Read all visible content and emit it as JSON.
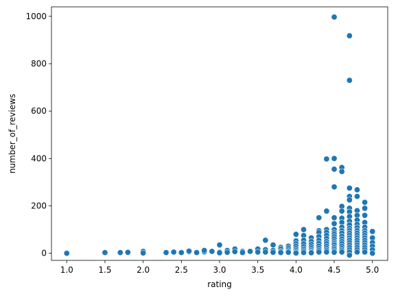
{
  "chart_data": {
    "type": "scatter",
    "title": "",
    "xlabel": "rating",
    "ylabel": "number_of_reviews",
    "xlim": [
      0.8,
      5.2
    ],
    "ylim": [
      -30,
      1040
    ],
    "xticks": [
      1.0,
      1.5,
      2.0,
      2.5,
      3.0,
      3.5,
      4.0,
      4.5,
      5.0
    ],
    "xtick_labels": [
      "1.0",
      "1.5",
      "2.0",
      "2.5",
      "3.0",
      "3.5",
      "4.0",
      "4.5",
      "5.0"
    ],
    "yticks": [
      0,
      200,
      400,
      600,
      800,
      1000
    ],
    "ytick_labels": [
      "0",
      "200",
      "400",
      "600",
      "800",
      "1000"
    ],
    "grid": false,
    "color": "#1f77b4",
    "series": [
      {
        "points": [
          [
            1.0,
            1
          ],
          [
            1.0,
            0
          ],
          [
            1.5,
            3
          ],
          [
            1.7,
            3
          ],
          [
            1.8,
            5
          ],
          [
            1.8,
            4
          ],
          [
            2.0,
            8
          ],
          [
            2.0,
            1
          ],
          [
            2.3,
            3
          ],
          [
            2.4,
            5
          ],
          [
            2.5,
            3
          ],
          [
            2.6,
            6
          ],
          [
            2.6,
            9
          ],
          [
            2.7,
            3
          ],
          [
            2.8,
            6
          ],
          [
            2.8,
            12
          ],
          [
            2.9,
            8
          ],
          [
            3.0,
            35
          ],
          [
            3.0,
            5
          ],
          [
            3.0,
            2
          ],
          [
            3.1,
            12
          ],
          [
            3.1,
            4
          ],
          [
            3.2,
            18
          ],
          [
            3.2,
            7
          ],
          [
            3.3,
            8
          ],
          [
            3.3,
            3
          ],
          [
            3.4,
            8
          ],
          [
            3.5,
            18
          ],
          [
            3.5,
            5
          ],
          [
            3.6,
            55
          ],
          [
            3.6,
            15
          ],
          [
            3.6,
            5
          ],
          [
            3.7,
            35
          ],
          [
            3.7,
            12
          ],
          [
            3.7,
            4
          ],
          [
            3.8,
            25
          ],
          [
            3.8,
            18
          ],
          [
            3.8,
            8
          ],
          [
            3.8,
            3
          ],
          [
            3.9,
            30
          ],
          [
            3.9,
            22
          ],
          [
            3.9,
            15
          ],
          [
            3.9,
            8
          ],
          [
            3.9,
            4
          ],
          [
            4.0,
            80
          ],
          [
            4.0,
            52
          ],
          [
            4.0,
            40
          ],
          [
            4.0,
            30
          ],
          [
            4.0,
            20
          ],
          [
            4.0,
            12
          ],
          [
            4.0,
            5
          ],
          [
            4.0,
            1
          ],
          [
            4.1,
            100
          ],
          [
            4.1,
            75
          ],
          [
            4.1,
            55
          ],
          [
            4.1,
            40
          ],
          [
            4.1,
            28
          ],
          [
            4.1,
            18
          ],
          [
            4.1,
            10
          ],
          [
            4.1,
            3
          ],
          [
            4.2,
            65
          ],
          [
            4.2,
            50
          ],
          [
            4.2,
            38
          ],
          [
            4.2,
            28
          ],
          [
            4.2,
            20
          ],
          [
            4.2,
            12
          ],
          [
            4.2,
            6
          ],
          [
            4.2,
            2
          ],
          [
            4.3,
            150
          ],
          [
            4.3,
            95
          ],
          [
            4.3,
            88
          ],
          [
            4.3,
            70
          ],
          [
            4.3,
            55
          ],
          [
            4.3,
            42
          ],
          [
            4.3,
            30
          ],
          [
            4.3,
            20
          ],
          [
            4.3,
            12
          ],
          [
            4.3,
            5
          ],
          [
            4.4,
            398
          ],
          [
            4.4,
            178
          ],
          [
            4.4,
            100
          ],
          [
            4.4,
            88
          ],
          [
            4.4,
            75
          ],
          [
            4.4,
            62
          ],
          [
            4.4,
            50
          ],
          [
            4.4,
            40
          ],
          [
            4.4,
            30
          ],
          [
            4.4,
            20
          ],
          [
            4.4,
            12
          ],
          [
            4.4,
            5
          ],
          [
            4.5,
            997
          ],
          [
            4.5,
            400
          ],
          [
            4.5,
            355
          ],
          [
            4.5,
            280
          ],
          [
            4.5,
            150
          ],
          [
            4.5,
            125
          ],
          [
            4.5,
            100
          ],
          [
            4.5,
            88
          ],
          [
            4.5,
            80
          ],
          [
            4.5,
            70
          ],
          [
            4.5,
            60
          ],
          [
            4.5,
            50
          ],
          [
            4.5,
            42
          ],
          [
            4.5,
            35
          ],
          [
            4.5,
            25
          ],
          [
            4.5,
            18
          ],
          [
            4.5,
            10
          ],
          [
            4.5,
            4
          ],
          [
            4.6,
            362
          ],
          [
            4.6,
            345
          ],
          [
            4.6,
            198
          ],
          [
            4.6,
            178
          ],
          [
            4.6,
            148
          ],
          [
            4.6,
            130
          ],
          [
            4.6,
            110
          ],
          [
            4.6,
            95
          ],
          [
            4.6,
            85
          ],
          [
            4.6,
            72
          ],
          [
            4.6,
            60
          ],
          [
            4.6,
            50
          ],
          [
            4.6,
            40
          ],
          [
            4.6,
            30
          ],
          [
            4.6,
            20
          ],
          [
            4.6,
            12
          ],
          [
            4.6,
            5
          ],
          [
            4.7,
            918
          ],
          [
            4.7,
            730
          ],
          [
            4.7,
            275
          ],
          [
            4.7,
            240
          ],
          [
            4.7,
            225
          ],
          [
            4.7,
            190
          ],
          [
            4.7,
            175
          ],
          [
            4.7,
            155
          ],
          [
            4.7,
            135
          ],
          [
            4.7,
            120
          ],
          [
            4.7,
            105
          ],
          [
            4.7,
            95
          ],
          [
            4.7,
            85
          ],
          [
            4.7,
            75
          ],
          [
            4.7,
            65
          ],
          [
            4.7,
            55
          ],
          [
            4.7,
            45
          ],
          [
            4.7,
            35
          ],
          [
            4.7,
            25
          ],
          [
            4.7,
            15
          ],
          [
            4.7,
            5
          ],
          [
            4.7,
            -8
          ],
          [
            4.8,
            268
          ],
          [
            4.8,
            240
          ],
          [
            4.8,
            180
          ],
          [
            4.8,
            160
          ],
          [
            4.8,
            140
          ],
          [
            4.8,
            122
          ],
          [
            4.8,
            108
          ],
          [
            4.8,
            95
          ],
          [
            4.8,
            85
          ],
          [
            4.8,
            75
          ],
          [
            4.8,
            65
          ],
          [
            4.8,
            55
          ],
          [
            4.8,
            45
          ],
          [
            4.8,
            35
          ],
          [
            4.8,
            25
          ],
          [
            4.8,
            15
          ],
          [
            4.8,
            5
          ],
          [
            4.9,
            215
          ],
          [
            4.9,
            190
          ],
          [
            4.9,
            160
          ],
          [
            4.9,
            130
          ],
          [
            4.9,
            110
          ],
          [
            4.9,
            95
          ],
          [
            4.9,
            85
          ],
          [
            4.9,
            75
          ],
          [
            4.9,
            65
          ],
          [
            4.9,
            55
          ],
          [
            4.9,
            45
          ],
          [
            4.9,
            35
          ],
          [
            4.9,
            25
          ],
          [
            4.9,
            15
          ],
          [
            4.9,
            5
          ],
          [
            5.0,
            92
          ],
          [
            5.0,
            65
          ],
          [
            5.0,
            45
          ],
          [
            5.0,
            30
          ],
          [
            5.0,
            15
          ],
          [
            5.0,
            0
          ]
        ]
      }
    ]
  }
}
